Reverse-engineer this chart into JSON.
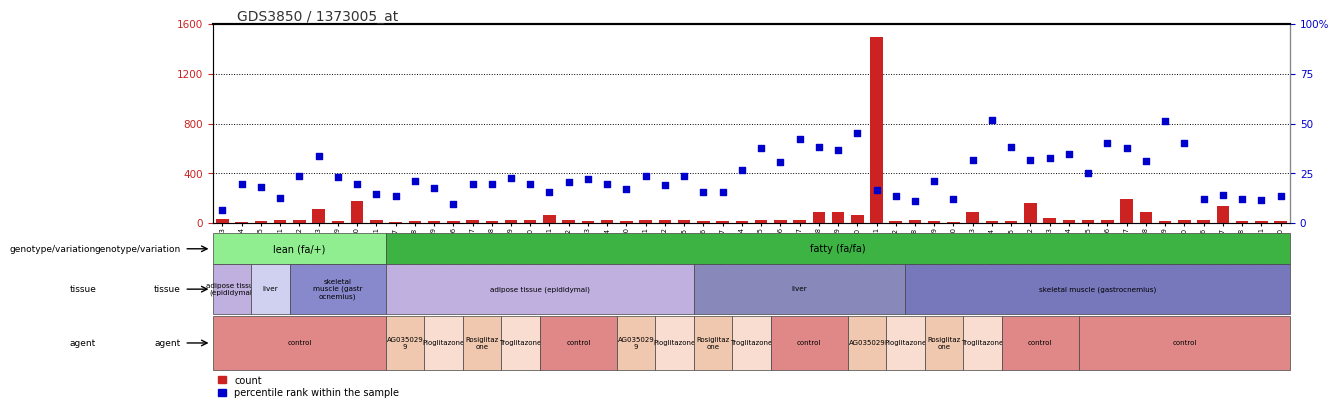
{
  "title": "GDS3850 / 1373005_at",
  "samples": [
    "GSM532993",
    "GSM532994",
    "GSM532995",
    "GSM533011",
    "GSM533012",
    "GSM533013",
    "GSM533029",
    "GSM533030",
    "GSM533031",
    "GSM532987",
    "GSM532988",
    "GSM532989",
    "GSM532996",
    "GSM532997",
    "GSM532998",
    "GSM532999",
    "GSM533000",
    "GSM533001",
    "GSM533002",
    "GSM533003",
    "GSM533004",
    "GSM532990",
    "GSM532991",
    "GSM532992",
    "GSM533005",
    "GSM533006",
    "GSM533007",
    "GSM533014",
    "GSM533015",
    "GSM533016",
    "GSM533017",
    "GSM533018",
    "GSM533019",
    "GSM533020",
    "GSM533021",
    "GSM533022",
    "GSM533008",
    "GSM533009",
    "GSM533010",
    "GSM533023",
    "GSM533024",
    "GSM533025",
    "GSM533032",
    "GSM533033",
    "GSM533034",
    "GSM533035",
    "GSM533036",
    "GSM533037",
    "GSM533038",
    "GSM533039",
    "GSM533040",
    "GSM533026",
    "GSM533027",
    "GSM533028",
    "GSM533041",
    "GSM533020"
  ],
  "count": [
    30,
    10,
    15,
    25,
    20,
    110,
    15,
    175,
    25,
    10,
    15,
    15,
    15,
    20,
    15,
    25,
    20,
    65,
    20,
    15,
    25,
    15,
    20,
    20,
    25,
    15,
    15,
    15,
    20,
    25,
    20,
    90,
    90,
    60,
    1500,
    15,
    20,
    15,
    10,
    90,
    15,
    15,
    160,
    40,
    25,
    20,
    20,
    190,
    85,
    15,
    20,
    20,
    140,
    15,
    15,
    15
  ],
  "percentile_left_scale": [
    100,
    310,
    290,
    200,
    380,
    540,
    370,
    310,
    230,
    220,
    335,
    285,
    155,
    310,
    310,
    365,
    310,
    245,
    330,
    350,
    310,
    270,
    375,
    305,
    375,
    250,
    245,
    430,
    605,
    490,
    675,
    615,
    585,
    720,
    265,
    215,
    175,
    340,
    195,
    505,
    825,
    615,
    505,
    520,
    555,
    405,
    645,
    605,
    495,
    820,
    645,
    195,
    225,
    195,
    188,
    218
  ],
  "left_ylim": [
    0,
    1600
  ],
  "left_yticks": [
    0,
    400,
    800,
    1200,
    1600
  ],
  "right_ylim": [
    0,
    100
  ],
  "right_yticks": [
    0,
    25,
    50,
    75,
    100
  ],
  "right_yticklabels": [
    "0",
    "25",
    "50",
    "75",
    "100%"
  ],
  "grid_lines": [
    400,
    800,
    1200
  ],
  "bar_color": "#cc2222",
  "dot_color": "#0000cc",
  "title_color": "#333333",
  "genotype_blocks": [
    {
      "start": 0,
      "end": 9,
      "label": "lean (fa/+)",
      "color": "#90EE90"
    },
    {
      "start": 9,
      "end": 56,
      "label": "fatty (fa/fa)",
      "color": "#3CB343"
    }
  ],
  "tissue_blocks": [
    {
      "start": 0,
      "end": 2,
      "label": "adipose tissue\n(epididymal)",
      "color": "#c0b0e0"
    },
    {
      "start": 2,
      "end": 4,
      "label": "liver",
      "color": "#d0d0f0"
    },
    {
      "start": 4,
      "end": 9,
      "label": "skeletal\nmuscle (gastr\nocnemius)",
      "color": "#8888cc"
    },
    {
      "start": 9,
      "end": 25,
      "label": "adipose tissue (epididymal)",
      "color": "#c0b0e0"
    },
    {
      "start": 25,
      "end": 36,
      "label": "liver",
      "color": "#8888bb"
    },
    {
      "start": 36,
      "end": 56,
      "label": "skeletal muscle (gastrocnemius)",
      "color": "#7777bb"
    }
  ],
  "agent_blocks": [
    {
      "start": 0,
      "end": 9,
      "label": "control",
      "color": "#e08888"
    },
    {
      "start": 9,
      "end": 11,
      "label": "AG035029\n9",
      "color": "#f0c8b0"
    },
    {
      "start": 11,
      "end": 13,
      "label": "Pioglitazone",
      "color": "#f8ddd0"
    },
    {
      "start": 13,
      "end": 15,
      "label": "Rosiglitaz\none",
      "color": "#f0c8b0"
    },
    {
      "start": 15,
      "end": 17,
      "label": "Troglitazone",
      "color": "#f8ddd0"
    },
    {
      "start": 17,
      "end": 21,
      "label": "control",
      "color": "#e08888"
    },
    {
      "start": 21,
      "end": 23,
      "label": "AG035029\n9",
      "color": "#f0c8b0"
    },
    {
      "start": 23,
      "end": 25,
      "label": "Pioglitazone",
      "color": "#f8ddd0"
    },
    {
      "start": 25,
      "end": 27,
      "label": "Rosiglitaz\none",
      "color": "#f0c8b0"
    },
    {
      "start": 27,
      "end": 29,
      "label": "Troglitazone",
      "color": "#f8ddd0"
    },
    {
      "start": 29,
      "end": 33,
      "label": "control",
      "color": "#e08888"
    },
    {
      "start": 33,
      "end": 35,
      "label": "AG035029",
      "color": "#f0c8b0"
    },
    {
      "start": 35,
      "end": 37,
      "label": "Pioglitazone",
      "color": "#f8ddd0"
    },
    {
      "start": 37,
      "end": 39,
      "label": "Rosiglitaz\none",
      "color": "#f0c8b0"
    },
    {
      "start": 39,
      "end": 41,
      "label": "Troglitazone",
      "color": "#f8ddd0"
    },
    {
      "start": 41,
      "end": 45,
      "label": "control",
      "color": "#e08888"
    },
    {
      "start": 45,
      "end": 56,
      "label": "control",
      "color": "#e08888"
    }
  ],
  "legend": [
    {
      "label": "count",
      "color": "#cc2222"
    },
    {
      "label": "percentile rank within the sample",
      "color": "#0000cc"
    }
  ]
}
